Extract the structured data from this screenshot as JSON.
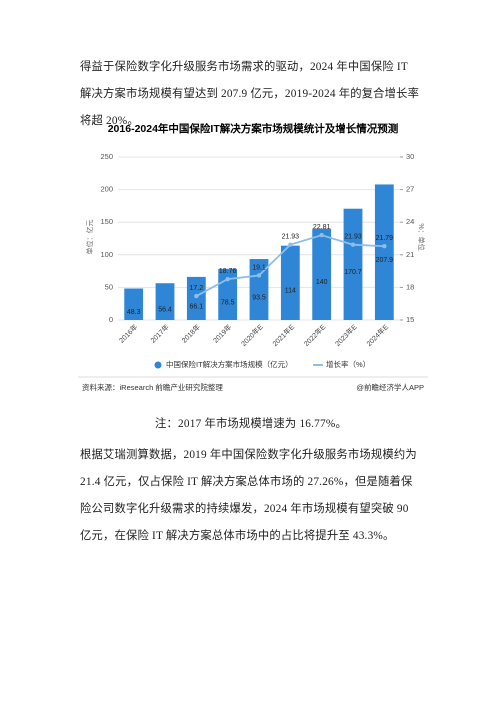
{
  "paragraphs": [
    "得益于保险数字化升级服务市场需求的驱动，2024 年中国保险 IT 解决方案市场规模有望达到 207.9 亿元，2019-2024 年的复合增长率将超 20%。"
  ],
  "chart_data": {
    "type": "bar-line",
    "title": "2016-2024年中国保险IT解决方案市场规模统计及增长情况预测",
    "y_label": "单位：亿元",
    "y2_label": "%：单位",
    "categories": [
      "2016年",
      "2017年",
      "2018年",
      "2019年",
      "2020年E",
      "2021年E",
      "2022年E",
      "2023年E",
      "2024年E"
    ],
    "series": [
      {
        "name": "中国保险IT解决方案市场规模（亿元）",
        "color": "#2f86d6",
        "kind": "bar",
        "values": [
          48.3,
          56.4,
          66.1,
          78.5,
          93.5,
          114,
          140,
          170.7,
          207.9
        ]
      },
      {
        "name": "增长率（%）",
        "color": "#8cbfe8",
        "kind": "line",
        "axis": "y2",
        "values": [
          null,
          null,
          17.2,
          18.76,
          19.1,
          21.93,
          22.81,
          21.93,
          21.79
        ]
      }
    ],
    "ylim": [
      0,
      250
    ],
    "yticks": [
      0,
      50,
      100,
      150,
      200,
      250
    ],
    "y2lim": [
      15,
      30
    ],
    "y2ticks": [
      15,
      18,
      21,
      24,
      27,
      30
    ],
    "source": "资料来源：iResearch 前瞻产业研究院整理",
    "credit": "@前瞻经济学人APP"
  },
  "note": "注：2017 年市场规模增速为 16.77%。",
  "paragraphs2": [
    "根据艾瑞测算数据，2019 年中国保险数字化升级服务市场规模约为 21.4 亿元，仅占保险 IT 解决方案总体市场的 27.26%，但是随着保险公司数字化升级需求的持续爆发，2024 年市场规模有望突破 90 亿元，在保险 IT 解决方案总体市场中的占比将提升至 43.3%。"
  ]
}
